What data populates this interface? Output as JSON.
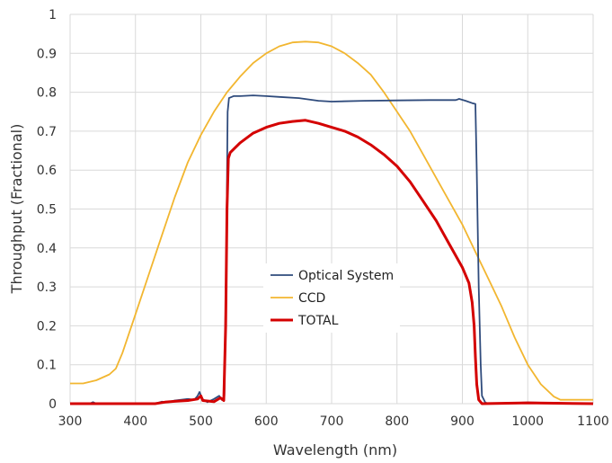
{
  "chart_data": {
    "type": "line",
    "title": "",
    "xlabel": "Wavelength (nm)",
    "ylabel": "Throughput (Fractional)",
    "xlim": [
      300,
      1100
    ],
    "ylim": [
      0,
      1
    ],
    "xticks": [
      300,
      400,
      500,
      600,
      700,
      800,
      900,
      1000,
      1100
    ],
    "yticks": [
      0,
      0.1,
      0.2,
      0.3,
      0.4,
      0.5,
      0.6,
      0.7,
      0.8,
      0.9,
      1
    ],
    "ytick_labels": [
      "0",
      "0.1",
      "0.2",
      "0.3",
      "0.4",
      "0.5",
      "0.6",
      "0.7",
      "0.8",
      "0.9",
      "1"
    ],
    "grid": true,
    "legend": "center-left",
    "series": [
      {
        "name": "Optical System",
        "color": "#2f4b7c",
        "width": 1.8,
        "points": [
          [
            300,
            0
          ],
          [
            330,
            0
          ],
          [
            335,
            0.004
          ],
          [
            340,
            0
          ],
          [
            430,
            0
          ],
          [
            440,
            0.005
          ],
          [
            450,
            0.004
          ],
          [
            460,
            0.008
          ],
          [
            470,
            0.01
          ],
          [
            480,
            0.012
          ],
          [
            490,
            0.01
          ],
          [
            495,
            0.02
          ],
          [
            498,
            0.03
          ],
          [
            502,
            0.012
          ],
          [
            510,
            0.004
          ],
          [
            520,
            0.012
          ],
          [
            528,
            0.02
          ],
          [
            532,
            0.01
          ],
          [
            536,
            0.02
          ],
          [
            539,
            0.4
          ],
          [
            541,
            0.75
          ],
          [
            543,
            0.785
          ],
          [
            550,
            0.79
          ],
          [
            560,
            0.79
          ],
          [
            580,
            0.792
          ],
          [
            600,
            0.79
          ],
          [
            620,
            0.788
          ],
          [
            650,
            0.785
          ],
          [
            680,
            0.778
          ],
          [
            700,
            0.776
          ],
          [
            750,
            0.778
          ],
          [
            800,
            0.779
          ],
          [
            850,
            0.78
          ],
          [
            890,
            0.78
          ],
          [
            895,
            0.783
          ],
          [
            905,
            0.778
          ],
          [
            915,
            0.772
          ],
          [
            920,
            0.77
          ],
          [
            922,
            0.6
          ],
          [
            925,
            0.3
          ],
          [
            928,
            0.1
          ],
          [
            930,
            0.02
          ],
          [
            935,
            0.003
          ],
          [
            940,
            0
          ],
          [
            1000,
            0.003
          ],
          [
            1100,
            0
          ]
        ]
      },
      {
        "name": "CCD",
        "color": "#f2b630",
        "width": 1.8,
        "points": [
          [
            300,
            0.052
          ],
          [
            320,
            0.052
          ],
          [
            340,
            0.06
          ],
          [
            360,
            0.075
          ],
          [
            370,
            0.09
          ],
          [
            380,
            0.13
          ],
          [
            400,
            0.23
          ],
          [
            420,
            0.33
          ],
          [
            440,
            0.43
          ],
          [
            460,
            0.53
          ],
          [
            480,
            0.62
          ],
          [
            500,
            0.69
          ],
          [
            520,
            0.75
          ],
          [
            540,
            0.8
          ],
          [
            560,
            0.84
          ],
          [
            580,
            0.875
          ],
          [
            600,
            0.9
          ],
          [
            620,
            0.918
          ],
          [
            640,
            0.928
          ],
          [
            660,
            0.93
          ],
          [
            680,
            0.928
          ],
          [
            700,
            0.918
          ],
          [
            720,
            0.9
          ],
          [
            740,
            0.875
          ],
          [
            760,
            0.845
          ],
          [
            780,
            0.8
          ],
          [
            800,
            0.75
          ],
          [
            820,
            0.7
          ],
          [
            840,
            0.64
          ],
          [
            860,
            0.58
          ],
          [
            880,
            0.52
          ],
          [
            900,
            0.46
          ],
          [
            920,
            0.39
          ],
          [
            940,
            0.32
          ],
          [
            960,
            0.25
          ],
          [
            980,
            0.17
          ],
          [
            1000,
            0.1
          ],
          [
            1020,
            0.05
          ],
          [
            1040,
            0.018
          ],
          [
            1050,
            0.01
          ],
          [
            1100,
            0.01
          ]
        ]
      },
      {
        "name": "TOTAL",
        "color": "#d40000",
        "width": 3,
        "points": [
          [
            300,
            0
          ],
          [
            330,
            0
          ],
          [
            430,
            0
          ],
          [
            445,
            0.004
          ],
          [
            460,
            0.006
          ],
          [
            480,
            0.008
          ],
          [
            495,
            0.012
          ],
          [
            500,
            0.02
          ],
          [
            503,
            0.008
          ],
          [
            520,
            0.005
          ],
          [
            530,
            0.015
          ],
          [
            535,
            0.008
          ],
          [
            538,
            0.2
          ],
          [
            540,
            0.5
          ],
          [
            542,
            0.63
          ],
          [
            545,
            0.645
          ],
          [
            560,
            0.67
          ],
          [
            580,
            0.695
          ],
          [
            600,
            0.71
          ],
          [
            620,
            0.72
          ],
          [
            640,
            0.725
          ],
          [
            660,
            0.728
          ],
          [
            680,
            0.72
          ],
          [
            700,
            0.71
          ],
          [
            720,
            0.7
          ],
          [
            740,
            0.685
          ],
          [
            760,
            0.665
          ],
          [
            780,
            0.64
          ],
          [
            800,
            0.61
          ],
          [
            820,
            0.57
          ],
          [
            840,
            0.52
          ],
          [
            860,
            0.47
          ],
          [
            880,
            0.41
          ],
          [
            900,
            0.35
          ],
          [
            910,
            0.31
          ],
          [
            915,
            0.26
          ],
          [
            918,
            0.2
          ],
          [
            920,
            0.12
          ],
          [
            922,
            0.05
          ],
          [
            925,
            0.01
          ],
          [
            930,
            0
          ],
          [
            1000,
            0.002
          ],
          [
            1100,
            0
          ]
        ]
      }
    ]
  }
}
